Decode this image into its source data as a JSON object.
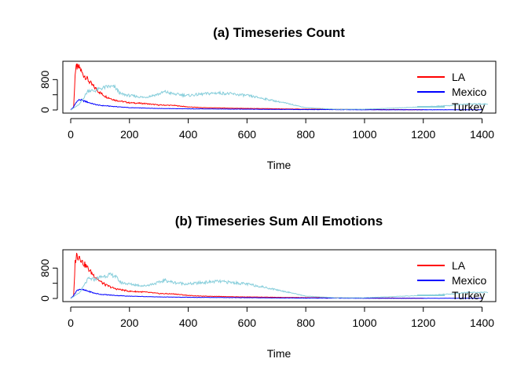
{
  "chart_data": [
    {
      "type": "line",
      "title": "(a) Timeseries Count",
      "xlabel": "Time",
      "ylabel": "",
      "xlim": [
        0,
        1420
      ],
      "ylim": [
        0,
        1200
      ],
      "xticks": [
        0,
        200,
        400,
        600,
        800,
        1000,
        1200,
        1400
      ],
      "xtick_labels": [
        "0",
        "200",
        "400",
        "600",
        "800",
        "1000",
        "1200",
        "1400"
      ],
      "yticks": [
        0,
        400,
        800
      ],
      "ytick_labels": [
        "0",
        "",
        "800"
      ],
      "legend": "top-right",
      "series": [
        {
          "name": "LA",
          "color": "#ff0000",
          "x": [
            0,
            10,
            15,
            20,
            25,
            30,
            40,
            50,
            60,
            70,
            80,
            100,
            120,
            150,
            200,
            250,
            300,
            350,
            400,
            450,
            500,
            550,
            600,
            700,
            800,
            900,
            1000,
            1100,
            1200
          ],
          "y": [
            0,
            60,
            950,
            1150,
            1100,
            1120,
            950,
            880,
            780,
            680,
            600,
            450,
            350,
            260,
            190,
            170,
            130,
            120,
            80,
            60,
            55,
            45,
            40,
            30,
            20,
            20,
            10,
            10,
            5
          ]
        },
        {
          "name": "Mexico",
          "color": "#0000ff",
          "x": [
            0,
            10,
            20,
            30,
            40,
            60,
            80,
            100,
            150,
            200,
            300,
            400,
            500,
            600,
            700,
            800,
            900,
            1000,
            1200,
            1400
          ],
          "y": [
            0,
            80,
            220,
            270,
            250,
            200,
            150,
            120,
            90,
            60,
            40,
            30,
            25,
            20,
            15,
            10,
            10,
            5,
            5,
            5
          ]
        },
        {
          "name": "Turkey",
          "color": "#87cedb",
          "x": [
            0,
            30,
            60,
            80,
            100,
            130,
            150,
            170,
            200,
            250,
            300,
            320,
            350,
            400,
            450,
            500,
            550,
            600,
            650,
            700,
            750,
            800,
            900,
            1000,
            1100,
            1200,
            1300,
            1350,
            1400,
            1420
          ],
          "y": [
            0,
            150,
            520,
            500,
            560,
            620,
            600,
            420,
            380,
            330,
            420,
            480,
            420,
            380,
            420,
            450,
            420,
            380,
            310,
            230,
            150,
            60,
            20,
            20,
            50,
            80,
            120,
            160,
            160,
            150
          ]
        }
      ]
    },
    {
      "type": "line",
      "title": "(b) Timeseries Sum All Emotions",
      "xlabel": "Time",
      "ylabel": "",
      "xlim": [
        0,
        1420
      ],
      "ylim": [
        0,
        1200
      ],
      "xticks": [
        0,
        200,
        400,
        600,
        800,
        1000,
        1200,
        1400
      ],
      "xtick_labels": [
        "0",
        "200",
        "400",
        "600",
        "800",
        "1000",
        "1200",
        "1400"
      ],
      "yticks": [
        0,
        400,
        800
      ],
      "ytick_labels": [
        "0",
        "",
        "800"
      ],
      "legend": "top-right",
      "series": [
        {
          "name": "LA",
          "color": "#ff0000",
          "x": [
            0,
            10,
            15,
            20,
            25,
            30,
            40,
            50,
            60,
            70,
            80,
            100,
            120,
            150,
            200,
            250,
            300,
            350,
            400,
            450,
            500,
            550,
            600,
            700,
            800,
            900,
            1000,
            1100,
            1200
          ],
          "y": [
            0,
            60,
            950,
            1150,
            1100,
            1120,
            950,
            880,
            780,
            680,
            600,
            450,
            350,
            260,
            190,
            170,
            130,
            120,
            80,
            60,
            55,
            45,
            40,
            30,
            20,
            20,
            10,
            10,
            5
          ]
        },
        {
          "name": "Mexico",
          "color": "#0000ff",
          "x": [
            0,
            10,
            20,
            30,
            40,
            60,
            80,
            100,
            150,
            200,
            300,
            400,
            500,
            600,
            700,
            800,
            900,
            1000,
            1200,
            1400
          ],
          "y": [
            0,
            80,
            200,
            250,
            230,
            190,
            140,
            110,
            80,
            60,
            40,
            30,
            25,
            20,
            15,
            10,
            10,
            5,
            5,
            5
          ]
        },
        {
          "name": "Turkey",
          "color": "#87cedb",
          "x": [
            0,
            30,
            60,
            80,
            100,
            130,
            150,
            170,
            200,
            250,
            300,
            320,
            350,
            400,
            450,
            500,
            550,
            600,
            650,
            700,
            750,
            800,
            900,
            1000,
            1100,
            1200,
            1300,
            1350,
            1400,
            1420
          ],
          "y": [
            0,
            150,
            520,
            500,
            560,
            620,
            600,
            420,
            380,
            330,
            420,
            480,
            420,
            380,
            420,
            450,
            420,
            380,
            310,
            230,
            150,
            60,
            20,
            20,
            50,
            80,
            120,
            160,
            160,
            150
          ]
        }
      ]
    }
  ]
}
